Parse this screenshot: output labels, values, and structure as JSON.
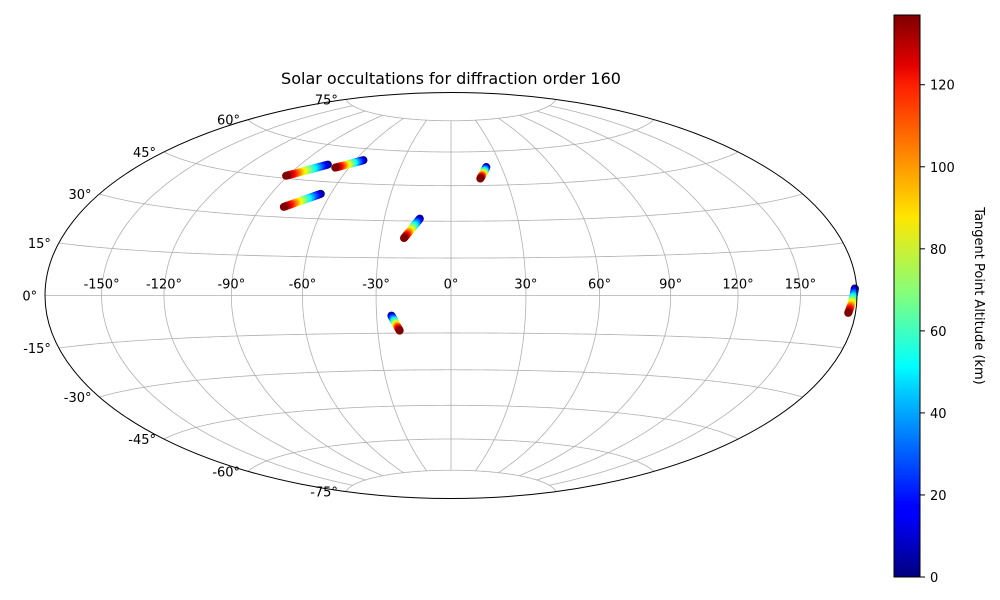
{
  "chart_data": {
    "type": "scatter",
    "projection": "hammer",
    "title": "Solar occultations for diffraction order 160",
    "xlabel": "",
    "ylabel": "",
    "grid": true,
    "lon_ticks": [
      -150,
      -120,
      -90,
      -60,
      -30,
      0,
      30,
      60,
      90,
      120,
      150
    ],
    "lon_tick_labels": [
      "-150°",
      "-120°",
      "-90°",
      "-60°",
      "-30°",
      "0°",
      "30°",
      "60°",
      "90°",
      "120°",
      "150°"
    ],
    "lat_ticks": [
      75,
      60,
      45,
      30,
      15,
      0,
      -15,
      -30,
      -45,
      -60,
      -75
    ],
    "lat_tick_labels": [
      "75°",
      "60°",
      "45°",
      "30°",
      "15°",
      "0°",
      "-15°",
      "-30°",
      "-45°",
      "-60°",
      "-75°"
    ],
    "colorbar": {
      "label": "Tangent Point Altitude (km)",
      "colormap": "jet",
      "range": [
        0,
        137
      ],
      "ticks": [
        0,
        20,
        40,
        60,
        80,
        100,
        120
      ],
      "tick_labels": [
        "0",
        "20",
        "40",
        "60",
        "80",
        "100",
        "120"
      ]
    },
    "tracks": [
      {
        "start": {
          "lon": -74,
          "lat": 52,
          "alt": 0
        },
        "end": {
          "lon": -91,
          "lat": 46,
          "alt": 137
        }
      },
      {
        "start": {
          "lon": -55,
          "lat": 55,
          "alt": 0
        },
        "end": {
          "lon": -68,
          "lat": 51,
          "alt": 137
        }
      },
      {
        "start": {
          "lon": -65,
          "lat": 40,
          "alt": 0
        },
        "end": {
          "lon": -79,
          "lat": 34,
          "alt": 137
        }
      },
      {
        "start": {
          "lon": 21,
          "lat": 53,
          "alt": 0
        },
        "end": {
          "lon": 16,
          "lat": 48,
          "alt": 137
        }
      },
      {
        "start": {
          "lon": -14,
          "lat": 31,
          "alt": 0
        },
        "end": {
          "lon": -20,
          "lat": 23,
          "alt": 137
        }
      },
      {
        "start": {
          "lon": -24,
          "lat": -8,
          "alt": 0
        },
        "end": {
          "lon": -21,
          "lat": -14,
          "alt": 137
        }
      },
      {
        "start": {
          "lon": 179,
          "lat": 2,
          "alt": 0
        },
        "end": {
          "lon": 176,
          "lat": -5,
          "alt": 137
        }
      }
    ]
  }
}
